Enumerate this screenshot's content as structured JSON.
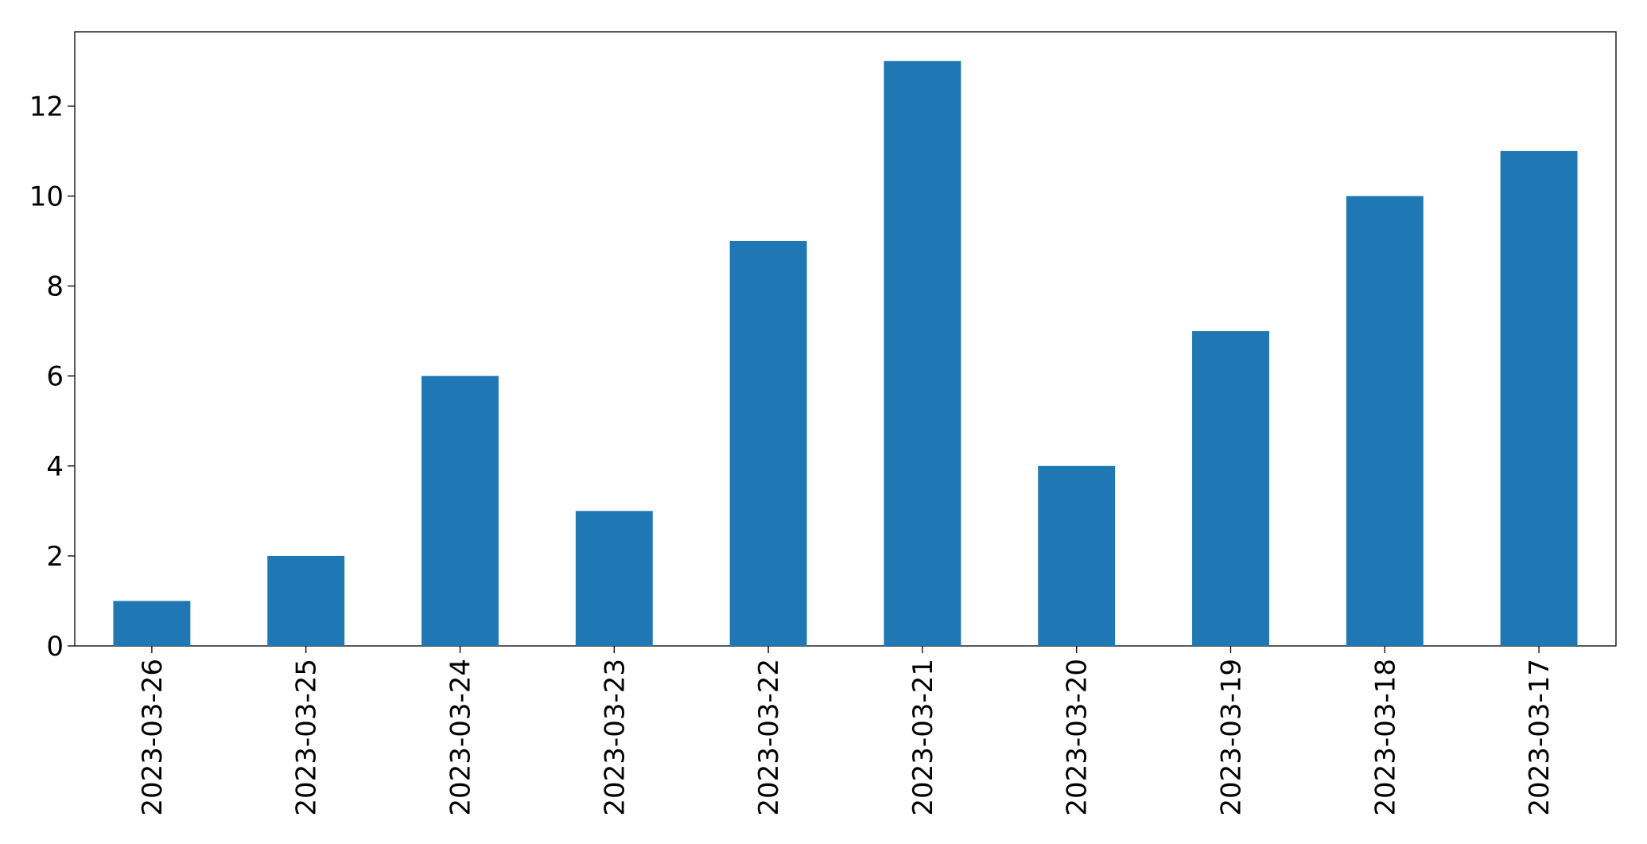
{
  "chart_data": {
    "type": "bar",
    "categories": [
      "2023-03-26",
      "2023-03-25",
      "2023-03-24",
      "2023-03-23",
      "2023-03-22",
      "2023-03-21",
      "2023-03-20",
      "2023-03-19",
      "2023-03-18",
      "2023-03-17"
    ],
    "values": [
      1,
      2,
      6,
      3,
      9,
      13,
      4,
      7,
      10,
      11
    ],
    "color": "#1f77b4",
    "ylim": [
      0,
      13.65
    ],
    "yticks": [
      0,
      2,
      4,
      6,
      8,
      10,
      12
    ],
    "grid": false
  }
}
